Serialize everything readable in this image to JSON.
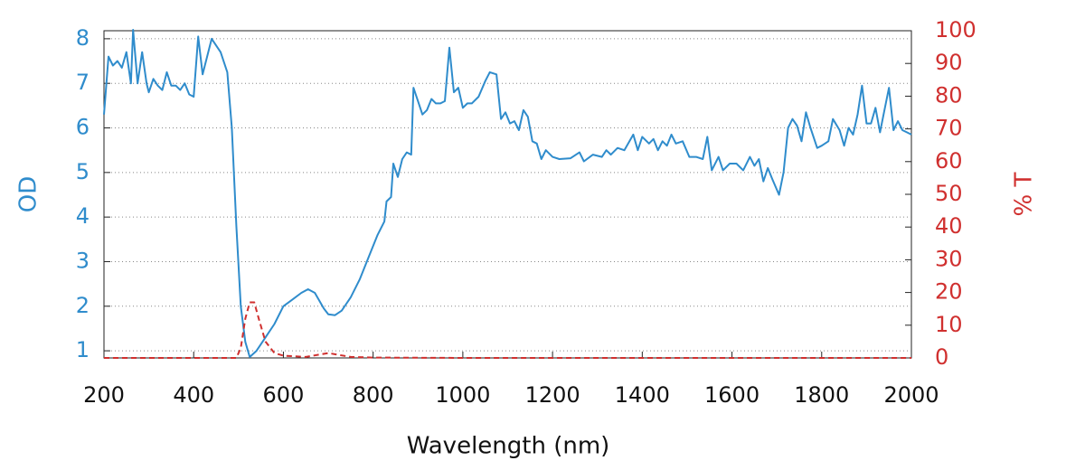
{
  "chart_data": {
    "type": "line",
    "xlabel": "Wavelength (nm)",
    "ylabel": "OD",
    "y2label": "% T",
    "xlim": [
      200,
      2000
    ],
    "xticks": [
      200,
      400,
      600,
      800,
      1000,
      1200,
      1400,
      1600,
      1800,
      2000
    ],
    "ylim": [
      0.84,
      8.18
    ],
    "yticks": [
      1,
      2,
      3,
      4,
      5,
      6,
      7,
      8
    ],
    "y2lim": [
      0,
      100
    ],
    "y2ticks": [
      0,
      10,
      20,
      30,
      40,
      50,
      60,
      70,
      80,
      90,
      100
    ],
    "grid": true,
    "series": [
      {
        "name": "OD",
        "color": "#2f8ccc",
        "axis": "y",
        "dash": "solid",
        "x": [
          200,
          210,
          220,
          230,
          240,
          250,
          260,
          265,
          275,
          285,
          295,
          300,
          310,
          320,
          330,
          340,
          350,
          360,
          370,
          380,
          390,
          400,
          410,
          420,
          440,
          460,
          475,
          485,
          495,
          505,
          515,
          525,
          540,
          560,
          580,
          600,
          620,
          640,
          655,
          670,
          690,
          700,
          715,
          730,
          750,
          770,
          790,
          810,
          825,
          830,
          840,
          845,
          855,
          865,
          875,
          885,
          890,
          900,
          910,
          920,
          930,
          940,
          950,
          960,
          970,
          980,
          990,
          1000,
          1010,
          1020,
          1035,
          1050,
          1060,
          1075,
          1085,
          1095,
          1105,
          1115,
          1125,
          1135,
          1145,
          1155,
          1165,
          1175,
          1185,
          1200,
          1215,
          1240,
          1260,
          1270,
          1290,
          1310,
          1320,
          1330,
          1345,
          1360,
          1380,
          1390,
          1400,
          1415,
          1425,
          1435,
          1445,
          1455,
          1465,
          1475,
          1490,
          1505,
          1520,
          1535,
          1545,
          1555,
          1570,
          1580,
          1595,
          1610,
          1625,
          1640,
          1650,
          1660,
          1670,
          1680,
          1690,
          1705,
          1715,
          1725,
          1735,
          1745,
          1755,
          1765,
          1775,
          1790,
          1800,
          1815,
          1825,
          1840,
          1850,
          1860,
          1870,
          1880,
          1890,
          1900,
          1910,
          1920,
          1930,
          1940,
          1950,
          1960,
          1970,
          1980,
          1990,
          2000
        ],
        "values": [
          6.3,
          7.6,
          7.4,
          7.5,
          7.35,
          7.7,
          7.0,
          8.2,
          7.0,
          7.7,
          7.0,
          6.8,
          7.1,
          6.95,
          6.85,
          7.25,
          6.95,
          6.95,
          6.85,
          7.0,
          6.75,
          6.7,
          8.05,
          7.2,
          8.0,
          7.7,
          7.25,
          6.0,
          3.8,
          2.0,
          1.2,
          0.86,
          1.0,
          1.3,
          1.6,
          2.0,
          2.15,
          2.3,
          2.38,
          2.3,
          1.95,
          1.82,
          1.8,
          1.9,
          2.2,
          2.6,
          3.1,
          3.6,
          3.9,
          4.35,
          4.45,
          5.2,
          4.9,
          5.3,
          5.45,
          5.4,
          6.9,
          6.6,
          6.3,
          6.4,
          6.65,
          6.55,
          6.55,
          6.6,
          7.8,
          6.8,
          6.9,
          6.45,
          6.55,
          6.55,
          6.7,
          7.05,
          7.25,
          7.2,
          6.2,
          6.35,
          6.1,
          6.15,
          5.95,
          6.4,
          6.25,
          5.7,
          5.65,
          5.3,
          5.5,
          5.35,
          5.3,
          5.32,
          5.45,
          5.25,
          5.4,
          5.35,
          5.5,
          5.4,
          5.55,
          5.5,
          5.85,
          5.5,
          5.8,
          5.65,
          5.75,
          5.5,
          5.7,
          5.6,
          5.85,
          5.65,
          5.7,
          5.35,
          5.35,
          5.3,
          5.8,
          5.05,
          5.35,
          5.05,
          5.2,
          5.2,
          5.05,
          5.35,
          5.15,
          5.3,
          4.8,
          5.1,
          4.85,
          4.5,
          5.0,
          6.0,
          6.2,
          6.05,
          5.7,
          6.35,
          6.0,
          5.55,
          5.6,
          5.7,
          6.2,
          5.95,
          5.6,
          6.0,
          5.85,
          6.3,
          6.95,
          6.1,
          6.1,
          6.45,
          5.9,
          6.4,
          6.9,
          5.95,
          6.15,
          5.95,
          5.9,
          5.85
        ]
      },
      {
        "name": "% T",
        "color": "#d0302f",
        "axis": "y2",
        "dash": "dashed",
        "x": [
          200,
          300,
          400,
          495,
          505,
          515,
          525,
          535,
          545,
          560,
          580,
          600,
          650,
          700,
          720,
          750,
          800,
          1000,
          1500,
          2000
        ],
        "values": [
          0,
          0,
          0,
          0,
          3,
          12,
          17,
          17,
          12,
          5,
          1.5,
          0.7,
          0.3,
          1.5,
          1,
          0.3,
          0.1,
          0,
          0,
          0
        ]
      }
    ]
  }
}
